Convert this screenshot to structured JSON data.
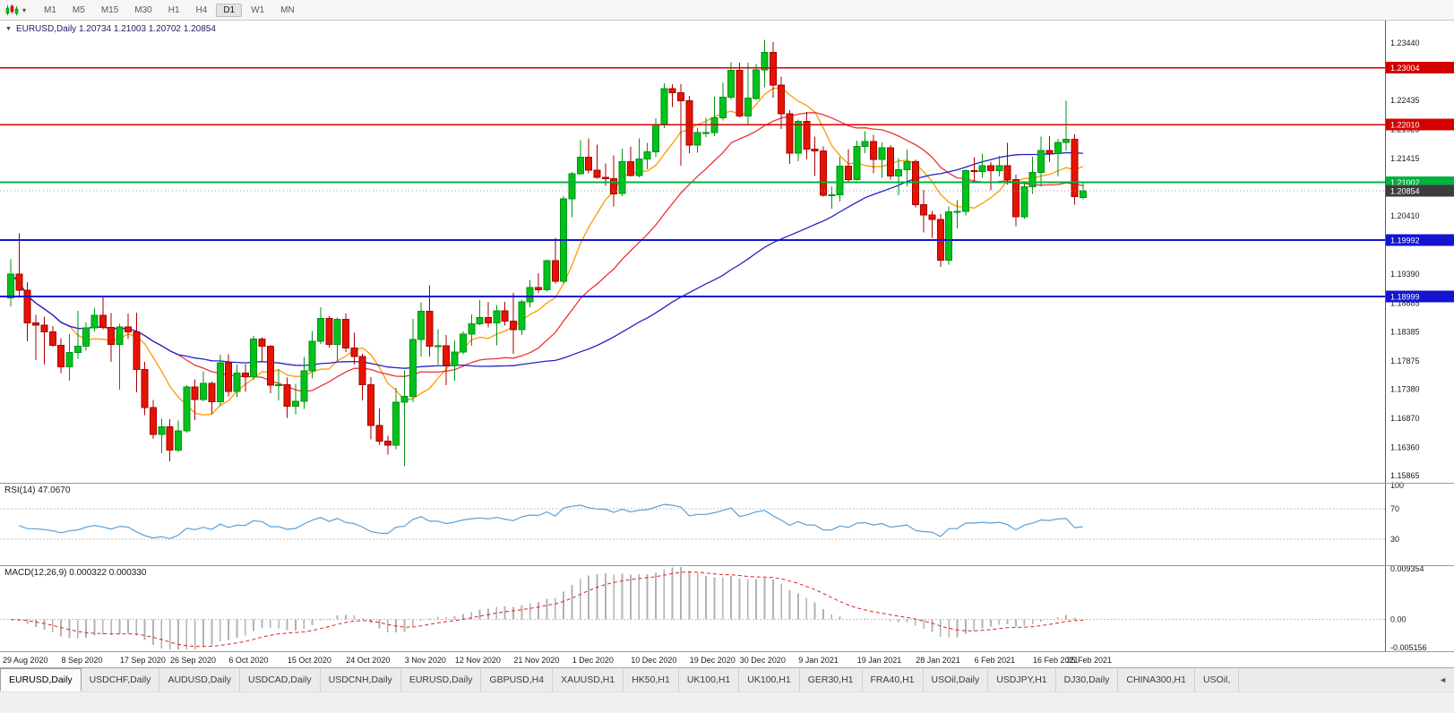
{
  "window": {
    "icons": {
      "collapse_caret": "▼",
      "toolbar_caret": "▾",
      "tabs_scroll": "◄"
    }
  },
  "toolbar": {
    "timeframes": [
      {
        "label": "M1",
        "active": false
      },
      {
        "label": "M5",
        "active": false
      },
      {
        "label": "M15",
        "active": false
      },
      {
        "label": "M30",
        "active": false
      },
      {
        "label": "H1",
        "active": false
      },
      {
        "label": "H4",
        "active": false
      },
      {
        "label": "D1",
        "active": true
      },
      {
        "label": "W1",
        "active": false
      },
      {
        "label": "MN",
        "active": false
      }
    ]
  },
  "chart_data": {
    "type": "candlestick",
    "title": "EURUSD,Daily",
    "ohlc_text": "1.20734 1.21003 1.20702 1.20854",
    "current": {
      "open": "1.20734",
      "high": "1.21003",
      "low": "1.20702",
      "close": "1.20854"
    },
    "y_range": {
      "top": 1.2383,
      "bottom": 1.1574
    },
    "y_ticks": [
      "1.23440",
      "1.22950",
      "1.22435",
      "1.21925",
      "1.21415",
      "1.20925",
      "1.20410",
      "1.19935",
      "1.19390",
      "1.18885",
      "1.18385",
      "1.17875",
      "1.17380",
      "1.16870",
      "1.16360",
      "1.15865"
    ],
    "x_labels": [
      {
        "t": "29 Aug 2020",
        "i": 0
      },
      {
        "t": "8 Sep 2020",
        "i": 7
      },
      {
        "t": "17 Sep 2020",
        "i": 14
      },
      {
        "t": "26 Sep 2020",
        "i": 20
      },
      {
        "t": "6 Oct 2020",
        "i": 27
      },
      {
        "t": "15 Oct 2020",
        "i": 34
      },
      {
        "t": "24 Oct 2020",
        "i": 41
      },
      {
        "t": "3 Nov 2020",
        "i": 48
      },
      {
        "t": "12 Nov 2020",
        "i": 54
      },
      {
        "t": "21 Nov 2020",
        "i": 61
      },
      {
        "t": "1 Dec 2020",
        "i": 68
      },
      {
        "t": "10 Dec 2020",
        "i": 75
      },
      {
        "t": "19 Dec 2020",
        "i": 82
      },
      {
        "t": "30 Dec 2020",
        "i": 88
      },
      {
        "t": "9 Jan 2021",
        "i": 95
      },
      {
        "t": "19 Jan 2021",
        "i": 102
      },
      {
        "t": "28 Jan 2021",
        "i": 109
      },
      {
        "t": "6 Feb 2021",
        "i": 116
      },
      {
        "t": "16 Feb 2021",
        "i": 123
      },
      {
        "t": "25 Feb 2021",
        "i": 127
      }
    ],
    "colors": {
      "up": "#00c21c",
      "up_border": "#009210",
      "down": "#e51400",
      "down_border": "#a80000",
      "background": "#ffffff"
    },
    "moving_averages": [
      {
        "name": "ma-fast",
        "period": 8,
        "color": "#ff9900"
      },
      {
        "name": "ma-medium",
        "period": 21,
        "color": "#ee3333"
      },
      {
        "name": "ma-slow",
        "period": 55,
        "color": "#2222c8"
      }
    ],
    "hlines": [
      {
        "price": 1.23004,
        "label": "1.23004",
        "color": "#d40000",
        "width": 1.5
      },
      {
        "price": 1.2201,
        "label": "1.22010",
        "color": "#d40000",
        "width": 1.5
      },
      {
        "price": 1.21002,
        "label": "1.21002",
        "color": "#00b23c",
        "width": 2
      },
      {
        "price": 1.19992,
        "label": "1.19992",
        "color": "#1414d2",
        "width": 2
      },
      {
        "price": 1.18999,
        "label": "1.18999",
        "color": "#1414d2",
        "width": 2
      }
    ],
    "price_line": {
      "price": 1.20854,
      "label": "1.20854",
      "color": "#3d3d3d"
    },
    "rsi": {
      "label": "RSI(14)",
      "value": "47.0670",
      "period": 14,
      "color": "#58a0da",
      "levels": [
        70,
        30
      ],
      "axis_labels": [
        "100",
        "70",
        "30"
      ]
    },
    "macd": {
      "label": "MACD(12,26,9)",
      "values": "0.000322 0.000330",
      "fast": 12,
      "slow": 26,
      "signal": 9,
      "axis_top": "0.009354",
      "axis_zero": "0.00",
      "axis_bottom": "-0.005156",
      "hist_color": "#b2b2b2",
      "signal_color": "#e02020"
    },
    "candles": [
      [
        1.1898,
        1.1965,
        1.1883,
        1.1939
      ],
      [
        1.1939,
        1.2011,
        1.1898,
        1.1911
      ],
      [
        1.1911,
        1.1925,
        1.1822,
        1.1854
      ],
      [
        1.1854,
        1.1868,
        1.1789,
        1.185
      ],
      [
        1.185,
        1.1865,
        1.1781,
        1.1838
      ],
      [
        1.1838,
        1.1848,
        1.1812,
        1.1815
      ],
      [
        1.1815,
        1.1827,
        1.1766,
        1.1777
      ],
      [
        1.1777,
        1.1834,
        1.1753,
        1.1802
      ],
      [
        1.1802,
        1.1875,
        1.1791,
        1.1813
      ],
      [
        1.1813,
        1.1855,
        1.1805,
        1.1845
      ],
      [
        1.1845,
        1.188,
        1.1839,
        1.1867
      ],
      [
        1.1867,
        1.19,
        1.1842,
        1.1846
      ],
      [
        1.1846,
        1.1871,
        1.1786,
        1.1816
      ],
      [
        1.1816,
        1.1852,
        1.1737,
        1.1847
      ],
      [
        1.1847,
        1.187,
        1.1826,
        1.1838
      ],
      [
        1.1838,
        1.1872,
        1.1732,
        1.1772
      ],
      [
        1.1772,
        1.1786,
        1.1692,
        1.1706
      ],
      [
        1.1706,
        1.1719,
        1.1651,
        1.1659
      ],
      [
        1.1659,
        1.1686,
        1.1626,
        1.1672
      ],
      [
        1.1672,
        1.1685,
        1.1612,
        1.1631
      ],
      [
        1.1631,
        1.1683,
        1.1628,
        1.1665
      ],
      [
        1.1665,
        1.1745,
        1.1662,
        1.1742
      ],
      [
        1.1742,
        1.1755,
        1.1684,
        1.172
      ],
      [
        1.172,
        1.1769,
        1.1717,
        1.1748
      ],
      [
        1.1748,
        1.1751,
        1.1695,
        1.1716
      ],
      [
        1.1716,
        1.1798,
        1.1708,
        1.1784
      ],
      [
        1.1784,
        1.1799,
        1.1725,
        1.1734
      ],
      [
        1.1734,
        1.1781,
        1.1724,
        1.1766
      ],
      [
        1.1766,
        1.1782,
        1.1733,
        1.176
      ],
      [
        1.176,
        1.1831,
        1.1754,
        1.1826
      ],
      [
        1.1826,
        1.1829,
        1.1785,
        1.1813
      ],
      [
        1.1813,
        1.1815,
        1.1731,
        1.1745
      ],
      [
        1.1745,
        1.1773,
        1.1718,
        1.1746
      ],
      [
        1.1746,
        1.1758,
        1.1688,
        1.1708
      ],
      [
        1.1708,
        1.1747,
        1.1694,
        1.1717
      ],
      [
        1.1717,
        1.1794,
        1.1703,
        1.177
      ],
      [
        1.177,
        1.184,
        1.1757,
        1.1822
      ],
      [
        1.1822,
        1.1881,
        1.1817,
        1.1862
      ],
      [
        1.1862,
        1.1866,
        1.1811,
        1.1816
      ],
      [
        1.1816,
        1.1863,
        1.1786,
        1.186
      ],
      [
        1.186,
        1.187,
        1.1803,
        1.181
      ],
      [
        1.181,
        1.1837,
        1.1781,
        1.1795
      ],
      [
        1.1795,
        1.18,
        1.1718,
        1.1746
      ],
      [
        1.1746,
        1.1759,
        1.165,
        1.1674
      ],
      [
        1.1674,
        1.1704,
        1.164,
        1.1647
      ],
      [
        1.1647,
        1.1656,
        1.1623,
        1.164
      ],
      [
        1.164,
        1.174,
        1.1633,
        1.1715
      ],
      [
        1.1715,
        1.1771,
        1.1603,
        1.1725
      ],
      [
        1.1725,
        1.1861,
        1.1715,
        1.1825
      ],
      [
        1.1825,
        1.189,
        1.1795,
        1.1874
      ],
      [
        1.1874,
        1.192,
        1.1795,
        1.1813
      ],
      [
        1.1813,
        1.1843,
        1.1781,
        1.1814
      ],
      [
        1.1814,
        1.1833,
        1.1745,
        1.1779
      ],
      [
        1.1779,
        1.1823,
        1.1753,
        1.1803
      ],
      [
        1.1803,
        1.1839,
        1.1799,
        1.1834
      ],
      [
        1.1834,
        1.1869,
        1.1814,
        1.1852
      ],
      [
        1.1852,
        1.1894,
        1.185,
        1.1863
      ],
      [
        1.1863,
        1.1891,
        1.1846,
        1.1854
      ],
      [
        1.1854,
        1.1885,
        1.1815,
        1.1875
      ],
      [
        1.1875,
        1.1891,
        1.1849,
        1.1857
      ],
      [
        1.1857,
        1.1906,
        1.18,
        1.1842
      ],
      [
        1.1842,
        1.1895,
        1.1833,
        1.1891
      ],
      [
        1.1891,
        1.1929,
        1.1881,
        1.1916
      ],
      [
        1.1916,
        1.1941,
        1.1906,
        1.1912
      ],
      [
        1.1912,
        1.1964,
        1.1909,
        1.1963
      ],
      [
        1.1963,
        1.2003,
        1.1923,
        1.1927
      ],
      [
        1.1927,
        1.2076,
        1.1923,
        1.2071
      ],
      [
        1.2071,
        1.2118,
        1.2039,
        1.2115
      ],
      [
        1.2115,
        1.2174,
        1.2113,
        1.2144
      ],
      [
        1.2144,
        1.2177,
        1.2116,
        1.2121
      ],
      [
        1.2121,
        1.2166,
        1.2106,
        1.2109
      ],
      [
        1.2109,
        1.2133,
        1.2094,
        1.2106
      ],
      [
        1.2106,
        1.2147,
        1.2058,
        1.208
      ],
      [
        1.208,
        1.2159,
        1.2076,
        1.2136
      ],
      [
        1.2136,
        1.2163,
        1.211,
        1.2112
      ],
      [
        1.2112,
        1.2177,
        1.2109,
        1.2141
      ],
      [
        1.2141,
        1.2169,
        1.2123,
        1.2153
      ],
      [
        1.2153,
        1.2212,
        1.2144,
        1.22
      ],
      [
        1.22,
        1.2273,
        1.2195,
        1.2264
      ],
      [
        1.2264,
        1.2272,
        1.2232,
        1.2257
      ],
      [
        1.2257,
        1.2272,
        1.2129,
        1.2243
      ],
      [
        1.2243,
        1.2251,
        1.2151,
        1.2165
      ],
      [
        1.2165,
        1.2196,
        1.2152,
        1.2187
      ],
      [
        1.2187,
        1.2213,
        1.2179,
        1.2187
      ],
      [
        1.2187,
        1.225,
        1.2181,
        1.2213
      ],
      [
        1.2213,
        1.2275,
        1.2208,
        1.2249
      ],
      [
        1.2249,
        1.231,
        1.2245,
        1.2296
      ],
      [
        1.2296,
        1.2309,
        1.2214,
        1.2216
      ],
      [
        1.2216,
        1.2309,
        1.22,
        1.2247
      ],
      [
        1.2247,
        1.2307,
        1.2244,
        1.2297
      ],
      [
        1.2297,
        1.2349,
        1.2266,
        1.2327
      ],
      [
        1.2327,
        1.2345,
        1.2248,
        1.227
      ],
      [
        1.227,
        1.2285,
        1.2193,
        1.222
      ],
      [
        1.222,
        1.2226,
        1.2132,
        1.2151
      ],
      [
        1.2151,
        1.221,
        1.2137,
        1.2207
      ],
      [
        1.2207,
        1.2223,
        1.214,
        1.2158
      ],
      [
        1.2158,
        1.218,
        1.2111,
        1.2155
      ],
      [
        1.2155,
        1.2163,
        1.2075,
        1.2077
      ],
      [
        1.2077,
        1.2092,
        1.2054,
        1.2078
      ],
      [
        1.2078,
        1.2145,
        1.2066,
        1.2128
      ],
      [
        1.2128,
        1.2158,
        1.2101,
        1.2105
      ],
      [
        1.2105,
        1.2173,
        1.2103,
        1.2163
      ],
      [
        1.2163,
        1.2189,
        1.2151,
        1.2171
      ],
      [
        1.2171,
        1.2183,
        1.2116,
        1.214
      ],
      [
        1.214,
        1.217,
        1.2108,
        1.216
      ],
      [
        1.216,
        1.2165,
        1.2105,
        1.2111
      ],
      [
        1.2111,
        1.2142,
        1.2077,
        1.2122
      ],
      [
        1.2122,
        1.2157,
        1.2093,
        1.2136
      ],
      [
        1.2136,
        1.214,
        1.2056,
        1.2061
      ],
      [
        1.2061,
        1.2087,
        1.2012,
        1.2043
      ],
      [
        1.2043,
        1.205,
        1.2003,
        1.2035
      ],
      [
        1.2035,
        1.2044,
        1.1952,
        1.1964
      ],
      [
        1.1964,
        1.2058,
        1.1956,
        1.2048
      ],
      [
        1.2048,
        1.2069,
        1.2019,
        1.2049
      ],
      [
        1.2049,
        1.2123,
        1.2042,
        1.212
      ],
      [
        1.212,
        1.2144,
        1.21,
        1.2119
      ],
      [
        1.2119,
        1.215,
        1.2108,
        1.2129
      ],
      [
        1.2129,
        1.2136,
        1.2086,
        1.212
      ],
      [
        1.212,
        1.2146,
        1.211,
        1.2129
      ],
      [
        1.2129,
        1.2169,
        1.2096,
        1.2105
      ],
      [
        1.2105,
        1.2113,
        1.2023,
        1.204
      ],
      [
        1.204,
        1.2101,
        1.2036,
        1.2092
      ],
      [
        1.2092,
        1.2145,
        1.208,
        1.2117
      ],
      [
        1.2117,
        1.218,
        1.2093,
        1.2156
      ],
      [
        1.2156,
        1.2181,
        1.2135,
        1.215
      ],
      [
        1.215,
        1.2176,
        1.211,
        1.217
      ],
      [
        1.217,
        1.2243,
        1.2155,
        1.2175
      ],
      [
        1.2175,
        1.2184,
        1.2061,
        1.2075
      ],
      [
        1.20734,
        1.21003,
        1.20702,
        1.20854
      ]
    ]
  },
  "tab_bar": {
    "tabs": [
      {
        "label": "EURUSD,Daily",
        "active": true
      },
      {
        "label": "USDCHF,Daily",
        "active": false
      },
      {
        "label": "AUDUSD,Daily",
        "active": false
      },
      {
        "label": "USDCAD,Daily",
        "active": false
      },
      {
        "label": "USDCNH,Daily",
        "active": false
      },
      {
        "label": "EURUSD,Daily",
        "active": false
      },
      {
        "label": "GBPUSD,H4",
        "active": false
      },
      {
        "label": "XAUUSD,H1",
        "active": false
      },
      {
        "label": "HK50,H1",
        "active": false
      },
      {
        "label": "UK100,H1",
        "active": false
      },
      {
        "label": "UK100,H1",
        "active": false
      },
      {
        "label": "GER30,H1",
        "active": false
      },
      {
        "label": "FRA40,H1",
        "active": false
      },
      {
        "label": "USOil,Daily",
        "active": false
      },
      {
        "label": "USDJPY,H1",
        "active": false
      },
      {
        "label": "DJ30,Daily",
        "active": false
      },
      {
        "label": "CHINA300,H1",
        "active": false
      },
      {
        "label": "USOil,",
        "active": false
      }
    ],
    "scroll_icon": "◄"
  }
}
